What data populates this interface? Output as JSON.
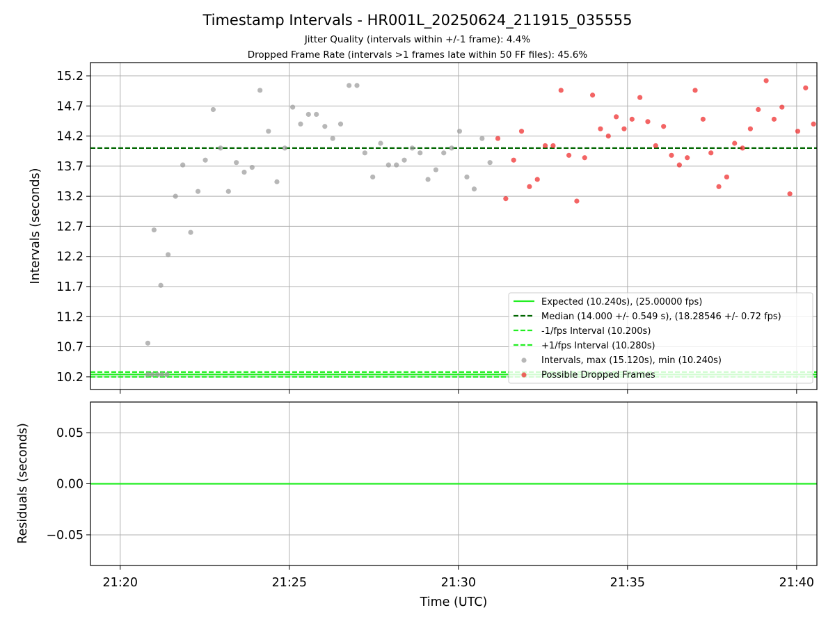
{
  "chart_data": [
    {
      "type": "scatter",
      "title": "Timestamp Intervals - HR001L_20250624_211915_035555",
      "subtitle_lines": [
        "Jitter Quality (intervals within +/-1 frame): 4.4%",
        "Dropped Frame Rate (intervals >1 frames late within 50 FF files): 45.6%"
      ],
      "ylabel": "Intervals (seconds)",
      "xlabel": "",
      "ylim": [
        9.99,
        15.42
      ],
      "yticks": [
        10.2,
        10.7,
        11.2,
        11.7,
        12.2,
        12.7,
        13.2,
        13.7,
        14.2,
        14.7,
        15.2
      ],
      "ytick_labels": [
        "10.2",
        "10.7",
        "11.2",
        "11.7",
        "12.2",
        "12.7",
        "13.2",
        "13.7",
        "14.2",
        "14.7",
        "15.2"
      ],
      "xlim_minutes": [
        19.12,
        40.6
      ],
      "xticks_minutes": [
        20,
        25,
        30,
        35,
        40
      ],
      "grid": true,
      "legend_placement": "lower-right",
      "lines": [
        {
          "name": "Expected (10.240s), (25.00000 fps)",
          "y": 10.24,
          "style": "solid",
          "color": "#22ee22"
        },
        {
          "name": "Median (14.000 +/- 0.549 s), (18.28546 +/- 0.72 fps)",
          "y": 14.0,
          "style": "dashed",
          "color": "#006600"
        },
        {
          "name": "-1/fps Interval (10.200s)",
          "y": 10.2,
          "style": "dashed",
          "color": "#22ee22"
        },
        {
          "name": "+1/fps Interval (10.280s)",
          "y": 10.28,
          "style": "dashed",
          "color": "#22ee22"
        }
      ],
      "series": [
        {
          "name": "Intervals, max (15.120s), min (10.240s)",
          "color": "#999999",
          "points": [
            {
              "t": "21:20:49",
              "y": 10.24
            },
            {
              "t": "21:20:57",
              "y": 10.24
            },
            {
              "t": "21:21:06",
              "y": 10.24
            },
            {
              "t": "21:21:14",
              "y": 10.24
            },
            {
              "t": "21:21:23",
              "y": 10.24
            },
            {
              "t": "21:20:49",
              "y": 10.76
            },
            {
              "t": "21:21:00",
              "y": 12.64
            },
            {
              "t": "21:21:12",
              "y": 11.72
            },
            {
              "t": "21:21:25",
              "y": 12.23
            },
            {
              "t": "21:21:38",
              "y": 13.2
            },
            {
              "t": "21:21:51",
              "y": 13.72
            },
            {
              "t": "21:22:05",
              "y": 12.6
            },
            {
              "t": "21:22:18",
              "y": 13.28
            },
            {
              "t": "21:22:31",
              "y": 13.8
            },
            {
              "t": "21:22:45",
              "y": 14.64
            },
            {
              "t": "21:22:58",
              "y": 14.0
            },
            {
              "t": "21:23:12",
              "y": 13.28
            },
            {
              "t": "21:23:26",
              "y": 13.76
            },
            {
              "t": "21:23:40",
              "y": 13.6
            },
            {
              "t": "21:23:54",
              "y": 13.68
            },
            {
              "t": "21:24:08",
              "y": 14.96
            },
            {
              "t": "21:24:23",
              "y": 14.28
            },
            {
              "t": "21:24:38",
              "y": 13.44
            },
            {
              "t": "21:24:52",
              "y": 14.0
            },
            {
              "t": "21:25:06",
              "y": 14.68
            },
            {
              "t": "21:25:20",
              "y": 14.4
            },
            {
              "t": "21:25:34",
              "y": 14.56
            },
            {
              "t": "21:25:48",
              "y": 14.56
            },
            {
              "t": "21:26:03",
              "y": 14.36
            },
            {
              "t": "21:26:17",
              "y": 14.16
            },
            {
              "t": "21:26:31",
              "y": 14.4
            },
            {
              "t": "21:26:46",
              "y": 15.04
            },
            {
              "t": "21:27:00",
              "y": 15.04
            },
            {
              "t": "21:27:14",
              "y": 13.92
            },
            {
              "t": "21:27:28",
              "y": 13.52
            },
            {
              "t": "21:27:42",
              "y": 14.08
            },
            {
              "t": "21:27:56",
              "y": 13.72
            },
            {
              "t": "21:28:10",
              "y": 13.72
            },
            {
              "t": "21:28:24",
              "y": 13.8
            },
            {
              "t": "21:28:38",
              "y": 14.0
            },
            {
              "t": "21:28:52",
              "y": 13.92
            },
            {
              "t": "21:29:06",
              "y": 13.48
            },
            {
              "t": "21:29:20",
              "y": 13.64
            },
            {
              "t": "21:29:34",
              "y": 13.92
            },
            {
              "t": "21:29:48",
              "y": 14.0
            },
            {
              "t": "21:30:02",
              "y": 14.28
            },
            {
              "t": "21:30:15",
              "y": 13.52
            },
            {
              "t": "21:30:28",
              "y": 13.32
            },
            {
              "t": "21:30:42",
              "y": 14.16
            },
            {
              "t": "21:30:56",
              "y": 13.76
            }
          ]
        },
        {
          "name": "Possible Dropped Frames",
          "color": "#ee2222",
          "points": [
            {
              "t": "21:31:10",
              "y": 14.16
            },
            {
              "t": "21:31:24",
              "y": 13.16
            },
            {
              "t": "21:31:38",
              "y": 13.8
            },
            {
              "t": "21:31:52",
              "y": 14.28
            },
            {
              "t": "21:32:06",
              "y": 13.36
            },
            {
              "t": "21:32:20",
              "y": 13.48
            },
            {
              "t": "21:32:34",
              "y": 14.04
            },
            {
              "t": "21:32:48",
              "y": 14.04
            },
            {
              "t": "21:33:02",
              "y": 14.96
            },
            {
              "t": "21:33:16",
              "y": 13.88
            },
            {
              "t": "21:33:30",
              "y": 13.12
            },
            {
              "t": "21:33:44",
              "y": 13.84
            },
            {
              "t": "21:33:58",
              "y": 14.88
            },
            {
              "t": "21:34:12",
              "y": 14.32
            },
            {
              "t": "21:34:26",
              "y": 14.2
            },
            {
              "t": "21:34:40",
              "y": 14.52
            },
            {
              "t": "21:34:54",
              "y": 14.32
            },
            {
              "t": "21:35:08",
              "y": 14.48
            },
            {
              "t": "21:35:22",
              "y": 14.84
            },
            {
              "t": "21:35:36",
              "y": 14.44
            },
            {
              "t": "21:35:50",
              "y": 14.04
            },
            {
              "t": "21:36:04",
              "y": 14.36
            },
            {
              "t": "21:36:18",
              "y": 13.88
            },
            {
              "t": "21:36:32",
              "y": 13.72
            },
            {
              "t": "21:36:46",
              "y": 13.84
            },
            {
              "t": "21:37:00",
              "y": 14.96
            },
            {
              "t": "21:37:14",
              "y": 14.48
            },
            {
              "t": "21:37:28",
              "y": 13.92
            },
            {
              "t": "21:37:42",
              "y": 13.36
            },
            {
              "t": "21:37:56",
              "y": 13.52
            },
            {
              "t": "21:38:10",
              "y": 14.08
            },
            {
              "t": "21:38:24",
              "y": 14.0
            },
            {
              "t": "21:38:38",
              "y": 14.32
            },
            {
              "t": "21:38:52",
              "y": 14.64
            },
            {
              "t": "21:39:06",
              "y": 15.12
            },
            {
              "t": "21:39:20",
              "y": 14.48
            },
            {
              "t": "21:39:34",
              "y": 14.68
            },
            {
              "t": "21:39:48",
              "y": 13.24
            },
            {
              "t": "21:40:02",
              "y": 14.28
            },
            {
              "t": "21:40:16",
              "y": 15.0
            },
            {
              "t": "21:40:30",
              "y": 14.4
            }
          ]
        }
      ]
    },
    {
      "type": "line",
      "ylabel": "Residuals (seconds)",
      "xlabel": "Time (UTC)",
      "ylim": [
        -0.08,
        0.08
      ],
      "yticks": [
        -0.05,
        0.0,
        0.05
      ],
      "ytick_labels": [
        "−0.05",
        "0.00",
        "0.05"
      ],
      "xlim_minutes": [
        19.12,
        40.6
      ],
      "xticks_minutes": [
        20,
        25,
        30,
        35,
        40
      ],
      "xtick_labels": [
        "21:20",
        "21:25",
        "21:30",
        "21:35",
        "21:40"
      ],
      "grid": true,
      "series": [
        {
          "name": "",
          "color": "#22ee22",
          "x_start": "21:19:07",
          "x_end": "21:40:36",
          "value": 0.0
        }
      ]
    }
  ],
  "legend": {
    "items": [
      {
        "label": "Expected (10.240s), (25.00000 fps)",
        "kind": "line-solid",
        "color": "#22ee22"
      },
      {
        "label": "Median (14.000 +/- 0.549 s), (18.28546 +/- 0.72 fps)",
        "kind": "line-dashed",
        "color": "#006600"
      },
      {
        "label": "-1/fps Interval (10.200s)",
        "kind": "line-dashed",
        "color": "#22ee22"
      },
      {
        "label": "+1/fps Interval (10.280s)",
        "kind": "line-dashed",
        "color": "#22ee22"
      },
      {
        "label": "Intervals, max (15.120s), min (10.240s)",
        "kind": "marker",
        "color": "#999999"
      },
      {
        "label": "Possible Dropped Frames",
        "kind": "marker",
        "color": "#ee2222"
      }
    ]
  }
}
